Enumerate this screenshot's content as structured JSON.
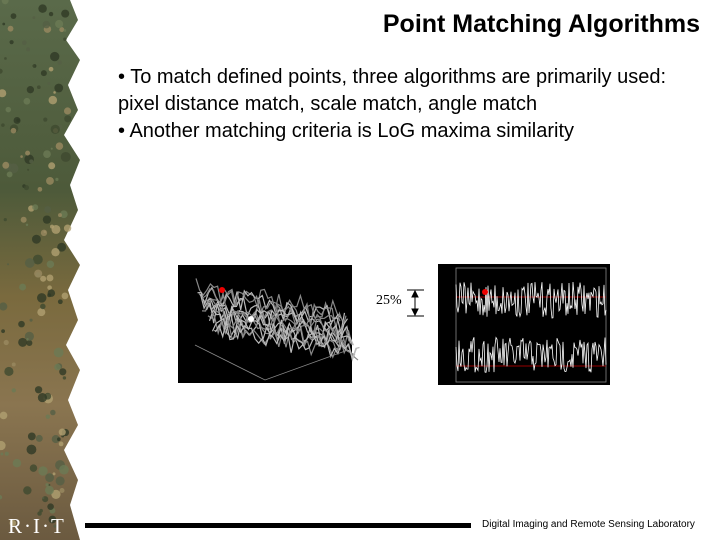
{
  "header": {
    "title": "Point Matching Algorithms"
  },
  "bullets": [
    "• To match defined points, three algorithms are primarily used: pixel distance match, scale match, angle match",
    "• Another matching criteria is LoG maxima similarity"
  ],
  "figure": {
    "annotation": "25%"
  },
  "footer": {
    "logo": "R·I·T",
    "lab": "Digital Imaging and Remote Sensing Laboratory"
  }
}
